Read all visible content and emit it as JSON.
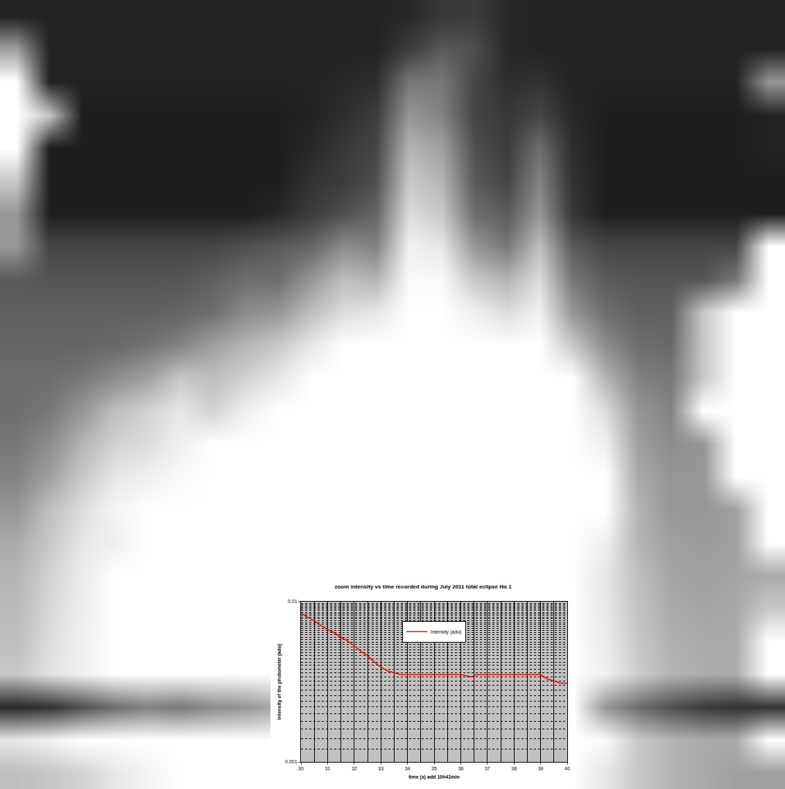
{
  "chart_data": [
    {
      "type": "heatmap",
      "color": "gray",
      "tick_labels": false,
      "xlim": [
        -0.5,
        23.5
      ],
      "ylim": [
        23.5,
        -0.5
      ],
      "zlim": [
        0,
        255
      ],
      "cells": [
        [
          35,
          35,
          35,
          35,
          35,
          35,
          35,
          35,
          35,
          35,
          35,
          35,
          40,
          55,
          60,
          40,
          35,
          35,
          35,
          35,
          35,
          35,
          35,
          35
        ],
        [
          160,
          35,
          35,
          35,
          35,
          35,
          35,
          35,
          35,
          35,
          35,
          35,
          60,
          90,
          80,
          40,
          35,
          35,
          35,
          35,
          35,
          35,
          35,
          35
        ],
        [
          255,
          35,
          35,
          35,
          35,
          35,
          35,
          35,
          35,
          35,
          40,
          45,
          120,
          120,
          70,
          45,
          50,
          35,
          35,
          35,
          35,
          35,
          35,
          150
        ],
        [
          255,
          200,
          30,
          30,
          30,
          30,
          30,
          30,
          30,
          35,
          45,
          60,
          150,
          130,
          70,
          55,
          70,
          40,
          30,
          30,
          30,
          30,
          30,
          35
        ],
        [
          255,
          30,
          30,
          30,
          30,
          30,
          30,
          30,
          30,
          40,
          55,
          70,
          180,
          160,
          80,
          60,
          110,
          45,
          30,
          30,
          30,
          30,
          30,
          35
        ],
        [
          200,
          30,
          30,
          30,
          30,
          30,
          30,
          30,
          30,
          50,
          60,
          80,
          200,
          180,
          90,
          70,
          130,
          50,
          30,
          30,
          30,
          30,
          30,
          30
        ],
        [
          150,
          30,
          30,
          30,
          30,
          30,
          30,
          30,
          40,
          60,
          80,
          100,
          220,
          200,
          110,
          90,
          150,
          55,
          30,
          30,
          30,
          30,
          30,
          30
        ],
        [
          150,
          70,
          70,
          70,
          70,
          70,
          70,
          80,
          90,
          100,
          140,
          130,
          240,
          230,
          150,
          120,
          190,
          90,
          70,
          70,
          70,
          70,
          70,
          255
        ],
        [
          90,
          85,
          85,
          85,
          85,
          85,
          95,
          110,
          110,
          150,
          190,
          180,
          250,
          250,
          200,
          180,
          220,
          120,
          90,
          85,
          85,
          85,
          120,
          255
        ],
        [
          95,
          95,
          95,
          95,
          95,
          100,
          110,
          140,
          150,
          190,
          220,
          230,
          255,
          255,
          240,
          220,
          240,
          150,
          110,
          95,
          95,
          200,
          255,
          255
        ],
        [
          100,
          100,
          100,
          105,
          115,
          130,
          160,
          180,
          200,
          230,
          255,
          255,
          255,
          255,
          255,
          255,
          255,
          200,
          140,
          110,
          105,
          200,
          255,
          255
        ],
        [
          110,
          110,
          120,
          140,
          160,
          200,
          190,
          210,
          230,
          255,
          255,
          255,
          255,
          255,
          255,
          255,
          255,
          255,
          180,
          130,
          120,
          200,
          255,
          255
        ],
        [
          110,
          120,
          150,
          190,
          210,
          230,
          210,
          240,
          255,
          255,
          255,
          255,
          255,
          255,
          255,
          255,
          255,
          255,
          220,
          150,
          130,
          255,
          255,
          255
        ],
        [
          120,
          140,
          180,
          210,
          220,
          240,
          255,
          255,
          255,
          255,
          255,
          255,
          255,
          255,
          255,
          255,
          255,
          255,
          240,
          160,
          140,
          150,
          255,
          255
        ],
        [
          130,
          160,
          200,
          230,
          240,
          250,
          255,
          255,
          255,
          255,
          255,
          255,
          255,
          255,
          255,
          255,
          255,
          255,
          255,
          170,
          150,
          150,
          255,
          255
        ],
        [
          150,
          190,
          220,
          245,
          255,
          255,
          255,
          255,
          255,
          255,
          255,
          255,
          255,
          255,
          255,
          255,
          255,
          255,
          255,
          180,
          150,
          150,
          160,
          255
        ],
        [
          170,
          200,
          230,
          240,
          255,
          255,
          255,
          255,
          255,
          255,
          255,
          255,
          255,
          255,
          255,
          255,
          255,
          255,
          240,
          180,
          160,
          155,
          160,
          255
        ],
        [
          180,
          210,
          235,
          255,
          255,
          255,
          255,
          255,
          255,
          255,
          255,
          255,
          255,
          255,
          255,
          255,
          255,
          255,
          230,
          190,
          165,
          160,
          165,
          170
        ],
        [
          185,
          215,
          238,
          255,
          255,
          255,
          255,
          255,
          255,
          255,
          255,
          255,
          255,
          255,
          255,
          255,
          255,
          255,
          232,
          195,
          170,
          165,
          168,
          200
        ],
        [
          190,
          220,
          240,
          255,
          255,
          255,
          255,
          255,
          255,
          255,
          255,
          255,
          255,
          255,
          255,
          255,
          255,
          255,
          235,
          200,
          175,
          170,
          170,
          255
        ],
        [
          200,
          225,
          240,
          255,
          255,
          255,
          255,
          255,
          255,
          255,
          255,
          255,
          255,
          255,
          255,
          255,
          255,
          255,
          240,
          205,
          180,
          172,
          172,
          255
        ],
        [
          40,
          50,
          80,
          110,
          130,
          120,
          140,
          150,
          170,
          255,
          255,
          255,
          255,
          255,
          255,
          255,
          255,
          255,
          150,
          110,
          80,
          60,
          50,
          50
        ],
        [
          230,
          240,
          255,
          255,
          255,
          255,
          255,
          255,
          255,
          255,
          255,
          255,
          255,
          255,
          255,
          255,
          255,
          255,
          250,
          200,
          180,
          170,
          170,
          255
        ],
        [
          190,
          200,
          210,
          230,
          245,
          255,
          255,
          255,
          255,
          255,
          255,
          255,
          255,
          255,
          255,
          255,
          255,
          255,
          230,
          200,
          180,
          170,
          160,
          160
        ]
      ]
    },
    {
      "type": "line",
      "title": "zoom intensity vs time recorded during July 2011 total eclipse Hα 1",
      "xlabel": "time (s) add 10h41min",
      "ylabel": "intensity of the photometer (adu)",
      "x": [
        30,
        30.25,
        30.5,
        30.75,
        31,
        31.25,
        31.5,
        31.75,
        32,
        32.25,
        32.5,
        32.75,
        33,
        33.25,
        33.5,
        33.75,
        34,
        34.5,
        35,
        35.5,
        36,
        36.4,
        36.6,
        37,
        37.5,
        38,
        38.5,
        39,
        39.25,
        39.5,
        39.75,
        40
      ],
      "series": [
        {
          "name": "Intensity (adu)",
          "color": "#ff0000",
          "values": [
            0.0085,
            0.008,
            0.0076,
            0.0071,
            0.0067,
            0.0064,
            0.006,
            0.0057,
            0.0053,
            0.0049,
            0.0046,
            0.0042,
            0.0039,
            0.0037,
            0.0036,
            0.0035,
            0.0035,
            0.0035,
            0.0035,
            0.0035,
            0.0035,
            0.0034,
            0.0035,
            0.0035,
            0.0035,
            0.0035,
            0.0035,
            0.0035,
            0.0033,
            0.0032,
            0.0031,
            0.0031
          ]
        }
      ],
      "xlim": [
        30,
        40
      ],
      "xticks": [
        30,
        31,
        32,
        33,
        34,
        35,
        36,
        37,
        38,
        39,
        40
      ],
      "ylim": [
        0.001,
        0.01
      ],
      "yticks": [
        {
          "value": 0.001,
          "label": "0,001"
        },
        {
          "value": 0.01,
          "label": "0,01"
        }
      ],
      "log": "y",
      "grid": true,
      "legend": "top"
    }
  ]
}
